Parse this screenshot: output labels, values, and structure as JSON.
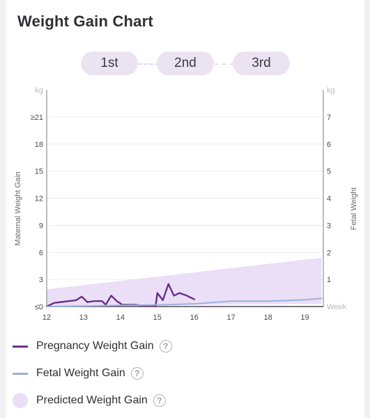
{
  "title": "Weight Gain Chart",
  "trimesters": [
    "1st",
    "2nd",
    "3rd"
  ],
  "legend": {
    "maternal": "Pregnancy Weight Gain",
    "fetal": "Fetal Weight Gain",
    "predicted": "Predicted Weight Gain",
    "help_glyph": "?"
  },
  "colors": {
    "maternal": "#6a2f86",
    "fetal": "#9bb0de",
    "predicted": "#eadff7",
    "trimester_bg": "#ece3f2"
  },
  "chart_data": {
    "type": "line",
    "xlabel": "Week",
    "x_ticks": [
      "12",
      "13",
      "14",
      "15",
      "16",
      "17",
      "18",
      "19"
    ],
    "x_range": [
      12,
      19.5
    ],
    "left_axis": {
      "label": "Maternal Weight Gain",
      "unit": "kg",
      "range": [
        0,
        24
      ],
      "tick_values": [
        0,
        3,
        6,
        9,
        12,
        15,
        18,
        21
      ],
      "tick_labels": [
        "≤0",
        "3",
        "6",
        "9",
        "12",
        "15",
        "18",
        "≥21"
      ]
    },
    "right_axis": {
      "label": "Fetal Weight",
      "unit": "kg",
      "range": [
        0,
        8
      ],
      "tick_values": [
        1,
        2,
        3,
        4,
        5,
        6,
        7
      ],
      "tick_labels": [
        "1",
        "2",
        "3",
        "4",
        "5",
        "6",
        "7"
      ]
    },
    "series": [
      {
        "name": "Pregnancy Weight Gain",
        "axis": "left",
        "x": [
          12.0,
          12.2,
          12.4,
          12.6,
          12.8,
          12.95,
          13.1,
          13.3,
          13.5,
          13.6,
          13.75,
          13.9,
          14.05,
          14.2,
          14.4,
          14.6,
          14.75,
          14.85,
          14.95,
          15.0,
          15.15,
          15.3,
          15.45,
          15.6,
          15.8,
          16.0
        ],
        "y": [
          0.0,
          0.4,
          0.5,
          0.6,
          0.7,
          1.1,
          0.5,
          0.6,
          0.6,
          0.2,
          1.2,
          0.6,
          0.2,
          0.2,
          0.2,
          0.1,
          0.1,
          0.1,
          0.0,
          1.5,
          0.7,
          2.5,
          1.2,
          1.5,
          1.2,
          0.8
        ]
      },
      {
        "name": "Fetal Weight Gain",
        "axis": "right",
        "x": [
          12.0,
          13.0,
          14.0,
          15.0,
          16.0,
          16.5,
          17.0,
          17.5,
          18.0,
          18.5,
          19.0,
          19.45
        ],
        "y": [
          0.0,
          0.02,
          0.04,
          0.06,
          0.1,
          0.15,
          0.2,
          0.2,
          0.2,
          0.22,
          0.25,
          0.3
        ]
      }
    ],
    "predicted_band": {
      "name": "Predicted Weight Gain",
      "axis": "left",
      "x": [
        12.0,
        19.45
      ],
      "low": [
        0.0,
        0.3
      ],
      "high": [
        1.9,
        5.4
      ]
    },
    "grid": true
  }
}
